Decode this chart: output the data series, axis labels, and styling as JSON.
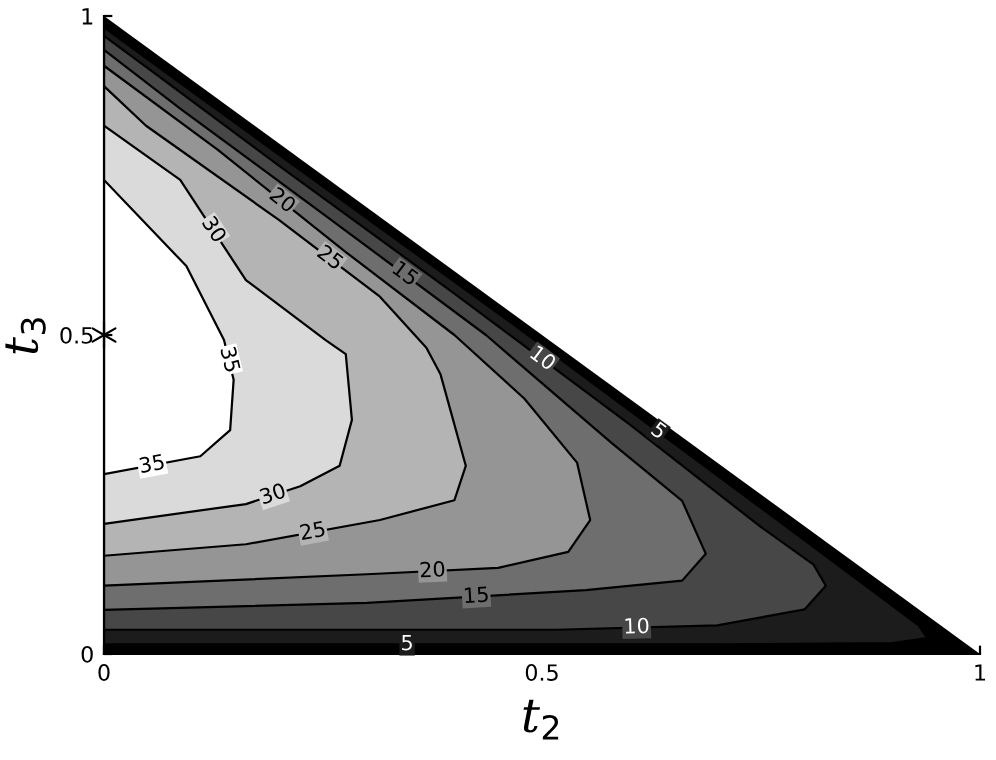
{
  "chart_data": {
    "type": "area",
    "xlabel": "t$_{2}$",
    "ylabel": "t$_{3}$",
    "xlim": [
      0,
      1
    ],
    "ylim": [
      0,
      1
    ],
    "xticks": [
      0,
      0.5,
      1
    ],
    "yticks": [
      0,
      0.5,
      1
    ],
    "grid": false,
    "legend": false,
    "series": [
      {
        "color": "#000000",
        "x": [
          0,
          1,
          0
        ],
        "values": [
          0,
          0,
          1
        ]
      },
      {
        "name": "5",
        "color": "#1c1c1c",
        "x": [
          0,
          0.11,
          0.459,
          0.806,
          0.93,
          0.94,
          0.9,
          0.692,
          0
        ],
        "values": [
          0.982,
          0.872,
          0.525,
          0.172,
          0.045,
          0.025,
          0.017,
          0.015,
          0.015
        ]
      },
      {
        "name": "10",
        "color": "#474747",
        "x": [
          0,
          0.053,
          0.2,
          0.4,
          0.6,
          0.749,
          0.81,
          0.824,
          0.8,
          0.7,
          0.516,
          0
        ],
        "values": [
          0.969,
          0.915,
          0.765,
          0.565,
          0.36,
          0.2,
          0.14,
          0.107,
          0.07,
          0.045,
          0.038,
          0.038
        ]
      },
      {
        "name": "15",
        "color": "#6e6e6e",
        "x": [
          0,
          0.087,
          0.25,
          0.436,
          0.58,
          0.66,
          0.687,
          0.66,
          0.55,
          0.3,
          0
        ],
        "values": [
          0.947,
          0.855,
          0.69,
          0.5,
          0.33,
          0.24,
          0.157,
          0.115,
          0.1,
          0.08,
          0.069
        ]
      },
      {
        "name": "20",
        "color": "#959595",
        "x": [
          0,
          0.13,
          0.276,
          0.4,
          0.48,
          0.54,
          0.555,
          0.53,
          0.45,
          0.3,
          0
        ],
        "values": [
          0.922,
          0.79,
          0.63,
          0.5,
          0.4,
          0.3,
          0.21,
          0.16,
          0.135,
          0.125,
          0.107
        ]
      },
      {
        "name": "25",
        "color": "#b4b4b4",
        "x": [
          0,
          0.048,
          0.2,
          0.315,
          0.368,
          0.384,
          0.413,
          0.4,
          0.315,
          0.162,
          0
        ],
        "values": [
          0.89,
          0.828,
          0.68,
          0.56,
          0.48,
          0.439,
          0.295,
          0.241,
          0.21,
          0.172,
          0.154
        ]
      },
      {
        "name": "30",
        "color": "#dadada",
        "x": [
          0,
          0.087,
          0.162,
          0.253,
          0.276,
          0.283,
          0.269,
          0.224,
          0.162,
          0
        ],
        "values": [
          0.828,
          0.743,
          0.586,
          0.492,
          0.47,
          0.367,
          0.295,
          0.263,
          0.235,
          0.204
        ]
      },
      {
        "name": "35",
        "color": "#ffffff",
        "x": [
          0,
          0.094,
          0.137,
          0.148,
          0.144,
          0.11,
          0
        ],
        "values": [
          0.743,
          0.608,
          0.492,
          0.43,
          0.351,
          0.31,
          0.282
        ]
      },
      {
        "type": "scatter",
        "marker": "cross",
        "color": "#000000",
        "x": [
          0
        ],
        "values": [
          0.5
        ]
      }
    ]
  }
}
